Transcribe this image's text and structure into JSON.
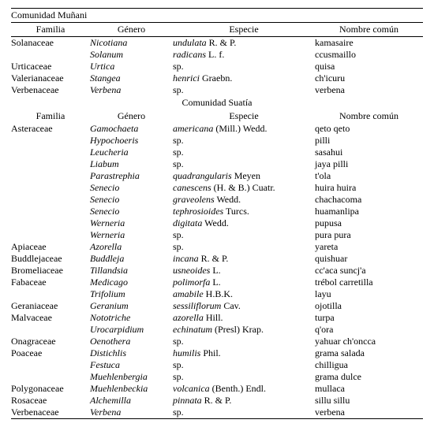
{
  "table": {
    "section1_title": "Comunidad Muñani",
    "section2_title": "Comunidad Suatía",
    "headers": {
      "familia": "Familia",
      "genero": "Género",
      "especie": "Especie",
      "nombre": "Nombre común"
    },
    "section1_rows": [
      {
        "familia": "Solanaceae",
        "genero": "Nicotiana",
        "especie_it": "undulata",
        "especie_rest": " R. & P.",
        "nombre": "kamasaire"
      },
      {
        "familia": "",
        "genero": "Solanum",
        "especie_it": "radicans",
        "especie_rest": " L. f.",
        "nombre": "ccusmaillo"
      },
      {
        "familia": "Urticaceae",
        "genero": "Urtica",
        "especie_it": "",
        "especie_rest": "sp.",
        "nombre": "quisa"
      },
      {
        "familia": "Valerianaceae",
        "genero": "Stangea",
        "especie_it": "henrici",
        "especie_rest": " Graebn.",
        "nombre": "ch'icuru"
      },
      {
        "familia": "Verbenaceae",
        "genero": "Verbena",
        "especie_it": "",
        "especie_rest": "sp.",
        "nombre": "verbena"
      }
    ],
    "section2_rows": [
      {
        "familia": "Asteraceae",
        "genero": "Gamochaeta",
        "especie_it": "americana",
        "especie_rest": " (Mill.) Wedd.",
        "nombre": "qeto qeto"
      },
      {
        "familia": "",
        "genero": "Hypochoeris",
        "especie_it": "",
        "especie_rest": "sp.",
        "nombre": "pilli"
      },
      {
        "familia": "",
        "genero": "Leucheria",
        "especie_it": "",
        "especie_rest": "sp.",
        "nombre": "sasahui"
      },
      {
        "familia": "",
        "genero": "Liabum",
        "especie_it": "",
        "especie_rest": "sp.",
        "nombre": "jaya pilli"
      },
      {
        "familia": "",
        "genero": "Parastrephia",
        "especie_it": "quadrangularis",
        "especie_rest": " Meyen",
        "nombre": "t'ola"
      },
      {
        "familia": "",
        "genero": "Senecio",
        "especie_it": "canescens",
        "especie_rest": " (H. & B.) Cuatr.",
        "nombre": "huira huira"
      },
      {
        "familia": "",
        "genero": "Senecio",
        "especie_it": "graveolens",
        "especie_rest": " Wedd.",
        "nombre": "chachacoma"
      },
      {
        "familia": "",
        "genero": "Senecio",
        "especie_it": "tephrosioides",
        "especie_rest": " Turcs.",
        "nombre": "huamanlipa"
      },
      {
        "familia": "",
        "genero": "Werneria",
        "especie_it": "digitata",
        "especie_rest": " Wedd.",
        "nombre": "pupusa"
      },
      {
        "familia": "",
        "genero": "Werneria",
        "especie_it": "",
        "especie_rest": "sp.",
        "nombre": "pura pura"
      },
      {
        "familia": "Apiaceae",
        "genero": "Azorella",
        "especie_it": "",
        "especie_rest": "sp.",
        "nombre": "yareta"
      },
      {
        "familia": "Buddlejaceae",
        "genero": "Buddleja",
        "especie_it": "incana",
        "especie_rest": " R. & P.",
        "nombre": "quishuar"
      },
      {
        "familia": "Bromeliaceae",
        "genero": "Tillandsia",
        "especie_it": "usneoides",
        "especie_rest": " L.",
        "nombre": "cc'aca suncj'a"
      },
      {
        "familia": "Fabaceae",
        "genero": "Medicago",
        "especie_it": "polimorfa",
        "especie_rest": " L.",
        "nombre": "trébol carretilla"
      },
      {
        "familia": "",
        "genero": "Trifolium",
        "especie_it": "amabile",
        "especie_rest": " H.B.K.",
        "nombre": "layu"
      },
      {
        "familia": "Geraniaceae",
        "genero": "Geranium",
        "especie_it": "sessiliflorum",
        "especie_rest": " Cav.",
        "nombre": "ojotilla"
      },
      {
        "familia": "Malvaceae",
        "genero": "Nototriche",
        "especie_it": "azorella",
        "especie_rest": " Hill.",
        "nombre": "turpa"
      },
      {
        "familia": "",
        "genero": "Urocarpidium",
        "especie_it": "echinatum",
        "especie_rest": " (Presl) Krap.",
        "nombre": "q'ora"
      },
      {
        "familia": "Onagraceae",
        "genero": "Oenothera",
        "especie_it": "",
        "especie_rest": "sp.",
        "nombre": "yahuar ch'oncca"
      },
      {
        "familia": "Poaceae",
        "genero": "Distichlis",
        "especie_it": "humilis",
        "especie_rest": " Phil.",
        "nombre": "grama salada"
      },
      {
        "familia": "",
        "genero": "Festuca",
        "especie_it": "",
        "especie_rest": "sp.",
        "nombre": "chilligua"
      },
      {
        "familia": "",
        "genero": "Muehlenbergia",
        "especie_it": "",
        "especie_rest": "sp.",
        "nombre": "grama dulce"
      },
      {
        "familia": "Polygonaceae",
        "genero": "Muehlenbeckia",
        "especie_it": "volcanica",
        "especie_rest": " (Benth.) Endl.",
        "nombre": "mullaca"
      },
      {
        "familia": "Rosaceae",
        "genero": "Alchemilla",
        "especie_it": "pinnata",
        "especie_rest": " R. & P.",
        "nombre": "sillu sillu"
      },
      {
        "familia": "Verbenaceae",
        "genero": "Verbena",
        "especie_it": "",
        "especie_rest": "sp.",
        "nombre": "verbena"
      }
    ]
  }
}
